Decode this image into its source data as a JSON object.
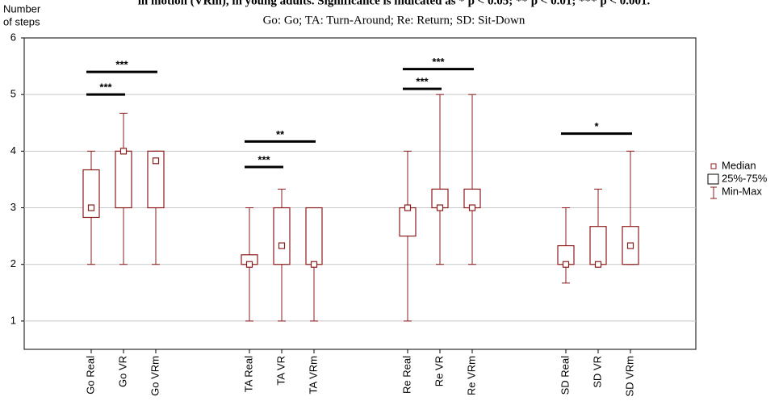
{
  "chart_data": {
    "type": "box",
    "title": "in motion (VRm), in young adults. Significance is indicated as * p < 0.05; ** p < 0.01; *** p < 0.001.",
    "subtitle": "Go: Go; TA: Turn-Around; Re: Return; SD: Sit-Down",
    "ylabel": [
      "Number",
      "of steps"
    ],
    "categories": [
      "Go Real",
      "Go VR",
      "Go VRm",
      "TA Real",
      "TA VR",
      "TA VRm",
      "Re Real",
      "Re VR",
      "Re VRm",
      "SD Real",
      "SD VR",
      "SD VRm"
    ],
    "boxes": [
      {
        "median": 3,
        "q1": 2.83,
        "q3": 3.67,
        "min": 2,
        "max": 4
      },
      {
        "median": 4,
        "q1": 3,
        "q3": 4,
        "min": 2,
        "max": 4.67
      },
      {
        "median": 3.83,
        "q1": 3,
        "q3": 4,
        "min": 2,
        "max": 4
      },
      {
        "median": 2,
        "q1": 2,
        "q3": 2.17,
        "min": 1,
        "max": 3
      },
      {
        "median": 2.33,
        "q1": 2,
        "q3": 3,
        "min": 1,
        "max": 3.33
      },
      {
        "median": 2,
        "q1": 2,
        "q3": 3,
        "min": 1,
        "max": 3
      },
      {
        "median": 3,
        "q1": 2.5,
        "q3": 3,
        "min": 1,
        "max": 4
      },
      {
        "median": 3,
        "q1": 3,
        "q3": 3.33,
        "min": 2,
        "max": 5
      },
      {
        "median": 3,
        "q1": 3,
        "q3": 3.33,
        "min": 2,
        "max": 5
      },
      {
        "median": 2,
        "q1": 2,
        "q3": 2.33,
        "min": 1.67,
        "max": 3
      },
      {
        "median": 2,
        "q1": 2,
        "q3": 2.67,
        "min": 2,
        "max": 3.33
      },
      {
        "median": 2.33,
        "q1": 2,
        "q3": 2.67,
        "min": 2,
        "max": 4
      }
    ],
    "significance": [
      {
        "label": "***",
        "y": 5.0,
        "from": "Go Real",
        "to": "Go VR"
      },
      {
        "label": "***",
        "y": 5.4,
        "from": "Go Real",
        "to": "Go VRm"
      },
      {
        "label": "***",
        "y": 3.72,
        "from": "TA Real",
        "to": "TA VR"
      },
      {
        "label": "**",
        "y": 4.17,
        "from": "TA Real",
        "to": "TA VRm"
      },
      {
        "label": "***",
        "y": 5.1,
        "from": "Re Real",
        "to": "Re VR"
      },
      {
        "label": "***",
        "y": 5.45,
        "from": "Re Real",
        "to": "Re VRm"
      },
      {
        "label": "*",
        "y": 4.31,
        "from": "SD Real",
        "to": "SD VRm"
      }
    ],
    "legend": [
      "Median",
      "25%-75%",
      "Min-Max"
    ],
    "color": "#8b1c1c",
    "ylim": [
      0.5,
      6
    ],
    "yticks": [
      1,
      2,
      3,
      4,
      5,
      6
    ],
    "grid": true
  }
}
